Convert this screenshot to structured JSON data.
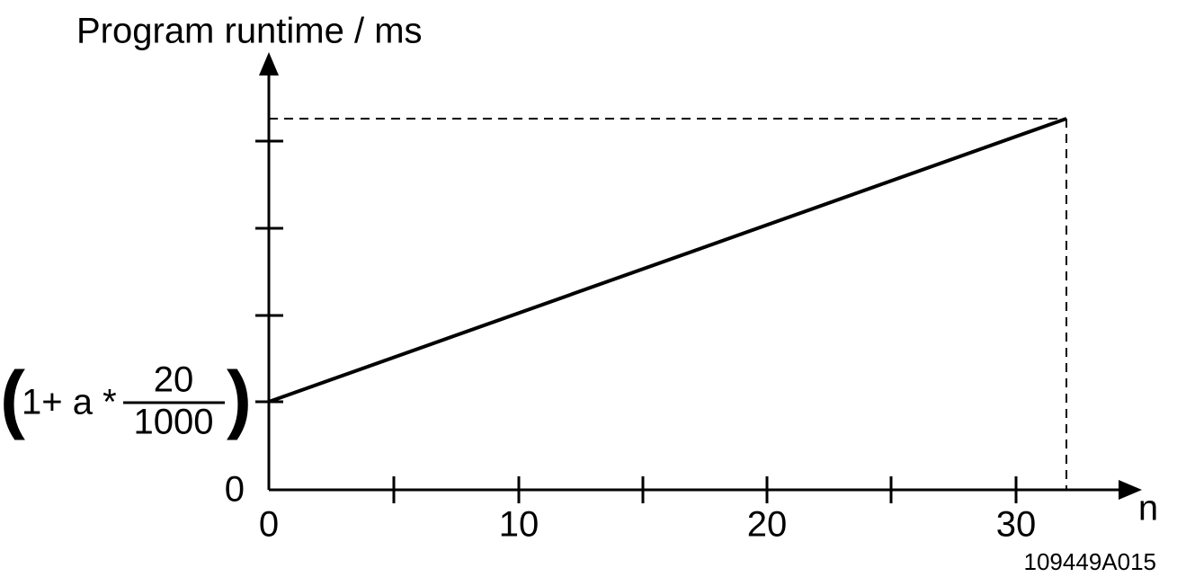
{
  "y_axis": {
    "label": "Program runtime / ms",
    "zero": "0",
    "intercept": {
      "open": "(",
      "prefix": "1+ a *",
      "numerator": "20",
      "denominator": "1000",
      "close": ")"
    }
  },
  "x_axis": {
    "label": "n",
    "ticks": [
      "0",
      "10",
      "20",
      "30"
    ]
  },
  "figure_id": "109449A015"
}
